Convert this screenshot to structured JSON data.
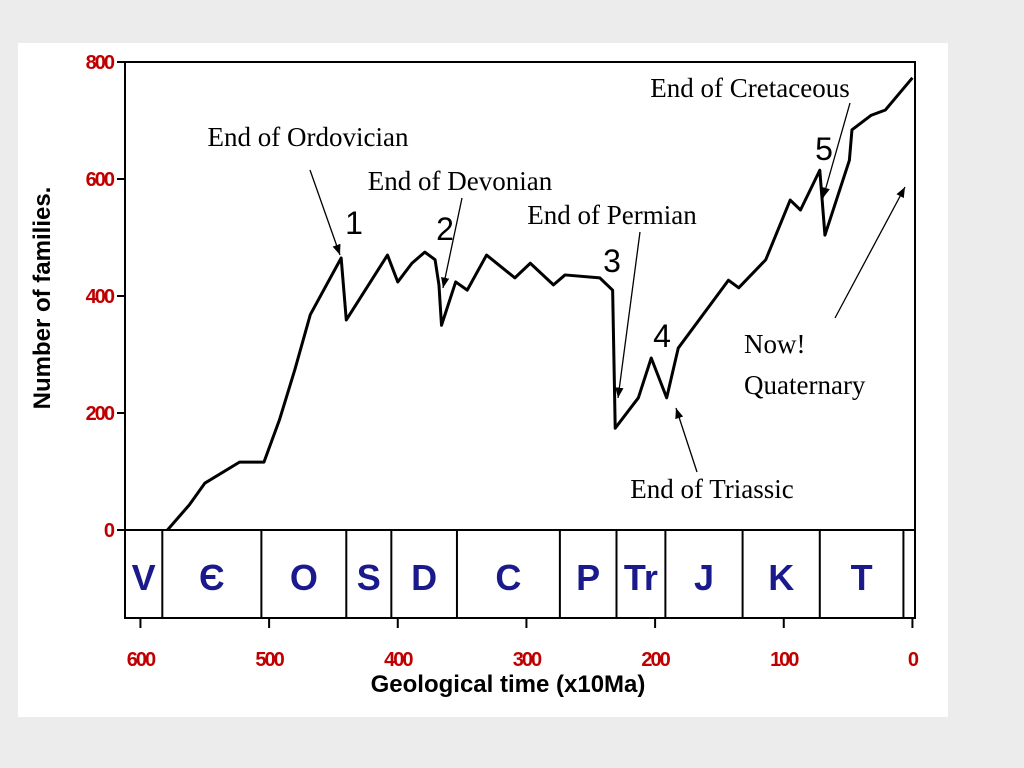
{
  "chart_data": {
    "type": "line",
    "x_label": "Geological time (x10Ma)",
    "y_label": "Number of families.",
    "xlim": [
      612,
      -2
    ],
    "ylim": [
      0,
      800
    ],
    "xticks": [
      600,
      500,
      400,
      300,
      200,
      100,
      0
    ],
    "yticks": [
      0,
      200,
      400,
      600,
      800
    ],
    "tick_color": "#c00000",
    "series": [
      {
        "color": "#000000",
        "x": [
          579,
          562,
          550,
          523,
          504,
          492,
          480,
          468,
          444,
          440,
          408,
          400,
          389,
          379,
          371,
          368,
          366,
          355,
          346,
          331,
          309,
          297,
          279,
          270,
          243,
          233,
          231,
          213,
          203,
          191,
          182,
          143,
          135,
          114,
          95,
          87,
          72,
          68,
          49,
          47,
          32,
          21,
          0
        ],
        "values": [
          0,
          43,
          80,
          116,
          116,
          188,
          274,
          368,
          465,
          359,
          470,
          424,
          456,
          475,
          462,
          419,
          350,
          424,
          410,
          470,
          431,
          456,
          419,
          436,
          431,
          410,
          174,
          226,
          294,
          226,
          311,
          427,
          414,
          462,
          564,
          547,
          615,
          504,
          632,
          684,
          709,
          718,
          773
        ]
      }
    ],
    "period_color": "#1a1a8c",
    "period_boundaries": [
      583,
      506,
      440,
      405,
      354,
      274,
      230,
      192,
      132,
      72,
      7
    ],
    "periods": [
      "V",
      "Є",
      "O",
      "S",
      "D",
      "C",
      "P",
      "Tr",
      "J",
      "K",
      "T",
      null
    ],
    "annotations": [
      {
        "lines": [
          "End of Ordovician"
        ]
      },
      {
        "lines": [
          "End of Devonian"
        ]
      },
      {
        "lines": [
          "End of Permian"
        ]
      },
      {
        "lines": [
          "End of Cretaceous"
        ]
      },
      {
        "lines": [
          "Now!",
          "Quaternary"
        ]
      },
      {
        "lines": [
          "End of Triassic"
        ]
      }
    ],
    "event_numbers": [
      "1",
      "2",
      "3",
      "4",
      "5"
    ]
  }
}
